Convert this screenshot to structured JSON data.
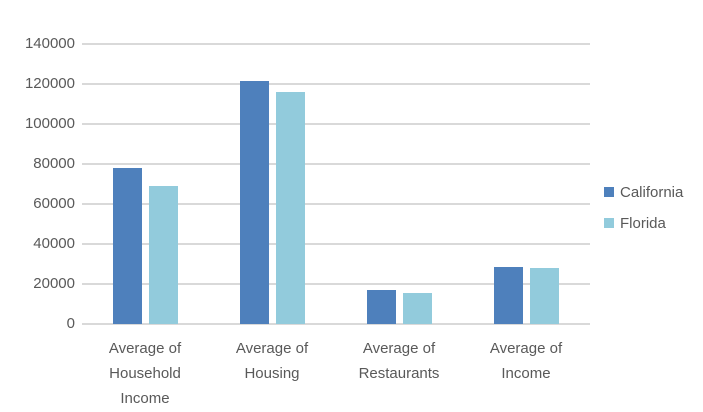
{
  "chart_data": {
    "type": "bar",
    "title": "",
    "xlabel": "",
    "ylabel": "",
    "categories": [
      "Average of Household Income",
      "Average of Housing",
      "Average of Restaurants",
      "Average of Income"
    ],
    "series": [
      {
        "name": "California",
        "color": "#4E80BC",
        "values": [
          78000,
          121500,
          16800,
          28400
        ]
      },
      {
        "name": "Florida",
        "color": "#92CBDC",
        "values": [
          69000,
          116000,
          15300,
          27800
        ]
      }
    ],
    "ylim": [
      0,
      140000
    ],
    "yticks": [
      0,
      20000,
      40000,
      60000,
      80000,
      100000,
      120000,
      140000
    ],
    "grid": true,
    "legend_position": "right",
    "gridline_color": "#D9D9D9",
    "text_color": "#595959",
    "background_color": "#FFFFFF"
  }
}
